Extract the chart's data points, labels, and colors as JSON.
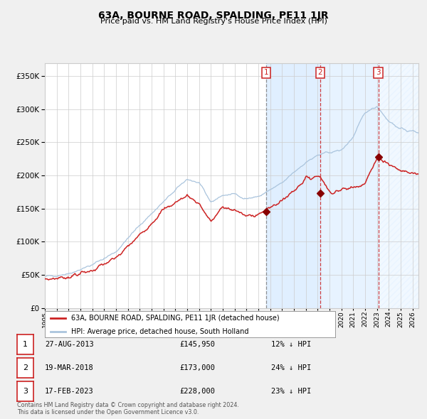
{
  "title": "63A, BOURNE ROAD, SPALDING, PE11 1JR",
  "subtitle": "Price paid vs. HM Land Registry's House Price Index (HPI)",
  "legend_label_red": "63A, BOURNE ROAD, SPALDING, PE11 1JR (detached house)",
  "legend_label_blue": "HPI: Average price, detached house, South Holland",
  "footer": "Contains HM Land Registry data © Crown copyright and database right 2024.\nThis data is licensed under the Open Government Licence v3.0.",
  "transactions": [
    {
      "num": 1,
      "date": "27-AUG-2013",
      "price": 145950,
      "pct": "12%",
      "direction": "↓",
      "date_x": 2013.65
    },
    {
      "num": 2,
      "date": "19-MAR-2018",
      "price": 173000,
      "pct": "24%",
      "direction": "↓",
      "date_x": 2018.21
    },
    {
      "num": 3,
      "date": "17-FEB-2023",
      "price": 228000,
      "pct": "23%",
      "direction": "↓",
      "date_x": 2023.12
    }
  ],
  "ylim": [
    0,
    370000
  ],
  "xlim_start": 1995.0,
  "xlim_end": 2026.5,
  "background_color": "#f0f0f0",
  "plot_bg": "#ffffff",
  "hpi_color": "#aac4dd",
  "red_color": "#cc2222",
  "shade_color": "#ddeeff",
  "grid_color": "#cccccc"
}
